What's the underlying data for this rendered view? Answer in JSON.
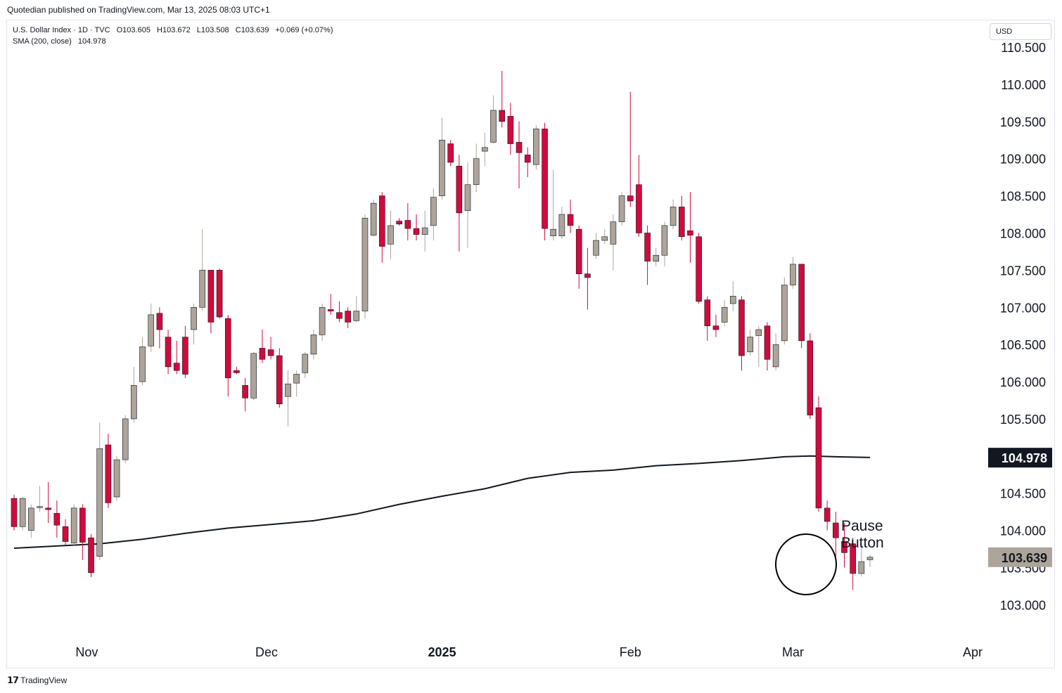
{
  "header": {
    "published": "Quotedian published on TradingView.com, Mar 13, 2025 08:03 UTC+1"
  },
  "legend": {
    "symbol": "U.S. Dollar Index · 1D · TVC",
    "open": "O103.605",
    "high": "H103.672",
    "low": "L103.508",
    "close": "C103.639",
    "change": "+0.069 (+0.07%)",
    "sma_label": "SMA (200, close)",
    "sma_value": "104.978"
  },
  "currency_button": "USD",
  "annotation": {
    "line1": "Pause",
    "line2": "Button"
  },
  "footer": {
    "brand": "TradingView"
  },
  "colors": {
    "up": "#ada49a",
    "down": "#d20a3c",
    "sma": "#131722",
    "last_price_bg": "#ada49a",
    "sma_label_bg": "#131722"
  },
  "chart_data": {
    "type": "candlestick",
    "title": "U.S. Dollar Index · 1D · TVC",
    "ylim": [
      102.55,
      110.85
    ],
    "y_ticks": [
      "110.500",
      "110.000",
      "109.500",
      "109.000",
      "108.500",
      "108.000",
      "107.500",
      "107.000",
      "106.500",
      "106.000",
      "105.500",
      "104.500",
      "104.000",
      "103.500",
      "103.000"
    ],
    "x_ticks": [
      {
        "label": "Nov",
        "index": 8.5
      },
      {
        "label": "Dec",
        "index": 29.5
      },
      {
        "label": "2025",
        "index": 50
      },
      {
        "label": "Feb",
        "index": 72
      },
      {
        "label": "Mar",
        "index": 91
      },
      {
        "label": "Apr",
        "index": 112
      }
    ],
    "price_labels": {
      "sma": "104.978",
      "last": "103.639"
    },
    "candles": [
      {
        "o": 104.43,
        "h": 104.48,
        "l": 104.0,
        "c": 104.05
      },
      {
        "o": 104.05,
        "h": 104.45,
        "l": 104.0,
        "c": 104.43
      },
      {
        "o": 104.0,
        "h": 104.35,
        "l": 103.9,
        "c": 104.3
      },
      {
        "o": 104.31,
        "h": 104.6,
        "l": 104.25,
        "c": 104.32
      },
      {
        "o": 104.3,
        "h": 104.65,
        "l": 104.1,
        "c": 104.28
      },
      {
        "o": 104.23,
        "h": 104.4,
        "l": 103.9,
        "c": 104.07
      },
      {
        "o": 104.05,
        "h": 104.15,
        "l": 103.8,
        "c": 103.85
      },
      {
        "o": 103.83,
        "h": 104.35,
        "l": 103.8,
        "c": 104.3
      },
      {
        "o": 104.3,
        "h": 104.35,
        "l": 103.6,
        "c": 103.84
      },
      {
        "o": 103.9,
        "h": 103.95,
        "l": 103.37,
        "c": 103.43
      },
      {
        "o": 103.65,
        "h": 105.45,
        "l": 103.6,
        "c": 105.1
      },
      {
        "o": 105.15,
        "h": 105.3,
        "l": 104.3,
        "c": 104.37
      },
      {
        "o": 104.45,
        "h": 105.0,
        "l": 104.4,
        "c": 104.95
      },
      {
        "o": 104.95,
        "h": 105.55,
        "l": 104.9,
        "c": 105.5
      },
      {
        "o": 105.5,
        "h": 106.2,
        "l": 105.45,
        "c": 105.95
      },
      {
        "o": 106.0,
        "h": 106.6,
        "l": 105.95,
        "c": 106.47
      },
      {
        "o": 106.48,
        "h": 107.05,
        "l": 106.4,
        "c": 106.9
      },
      {
        "o": 106.92,
        "h": 107.0,
        "l": 106.45,
        "c": 106.7
      },
      {
        "o": 106.6,
        "h": 106.7,
        "l": 106.1,
        "c": 106.2
      },
      {
        "o": 106.25,
        "h": 106.55,
        "l": 106.1,
        "c": 106.15
      },
      {
        "o": 106.6,
        "h": 106.75,
        "l": 106.05,
        "c": 106.1
      },
      {
        "o": 106.7,
        "h": 107.05,
        "l": 106.5,
        "c": 107.0
      },
      {
        "o": 107.0,
        "h": 108.05,
        "l": 106.95,
        "c": 107.5
      },
      {
        "o": 107.5,
        "h": 107.5,
        "l": 106.65,
        "c": 106.8
      },
      {
        "o": 107.5,
        "h": 107.52,
        "l": 106.85,
        "c": 106.87
      },
      {
        "o": 106.85,
        "h": 106.9,
        "l": 105.8,
        "c": 106.05
      },
      {
        "o": 106.15,
        "h": 106.2,
        "l": 106.1,
        "c": 106.12
      },
      {
        "o": 105.95,
        "h": 106.05,
        "l": 105.6,
        "c": 105.78
      },
      {
        "o": 105.78,
        "h": 106.4,
        "l": 105.75,
        "c": 106.38
      },
      {
        "o": 106.45,
        "h": 106.7,
        "l": 106.25,
        "c": 106.3
      },
      {
        "o": 106.43,
        "h": 106.6,
        "l": 106.3,
        "c": 106.35
      },
      {
        "o": 106.35,
        "h": 106.45,
        "l": 105.65,
        "c": 105.7
      },
      {
        "o": 105.8,
        "h": 106.15,
        "l": 105.4,
        "c": 105.97
      },
      {
        "o": 105.98,
        "h": 106.15,
        "l": 105.8,
        "c": 106.1
      },
      {
        "o": 106.12,
        "h": 106.4,
        "l": 106.05,
        "c": 106.37
      },
      {
        "o": 106.37,
        "h": 106.7,
        "l": 106.3,
        "c": 106.63
      },
      {
        "o": 106.63,
        "h": 107.05,
        "l": 106.55,
        "c": 107.0
      },
      {
        "o": 106.97,
        "h": 107.18,
        "l": 106.9,
        "c": 106.95
      },
      {
        "o": 106.93,
        "h": 107.08,
        "l": 106.8,
        "c": 106.85
      },
      {
        "o": 106.95,
        "h": 107.0,
        "l": 106.72,
        "c": 106.8
      },
      {
        "o": 106.82,
        "h": 107.15,
        "l": 106.8,
        "c": 106.95
      },
      {
        "o": 106.95,
        "h": 108.25,
        "l": 106.85,
        "c": 108.2
      },
      {
        "o": 107.97,
        "h": 108.45,
        "l": 107.95,
        "c": 108.4
      },
      {
        "o": 108.5,
        "h": 108.55,
        "l": 107.6,
        "c": 107.82
      },
      {
        "o": 107.85,
        "h": 108.3,
        "l": 107.65,
        "c": 108.1
      },
      {
        "o": 108.16,
        "h": 108.2,
        "l": 108.1,
        "c": 108.12
      },
      {
        "o": 108.17,
        "h": 108.4,
        "l": 107.9,
        "c": 108.06
      },
      {
        "o": 108.06,
        "h": 108.25,
        "l": 107.9,
        "c": 107.98
      },
      {
        "o": 107.98,
        "h": 108.3,
        "l": 107.75,
        "c": 108.07
      },
      {
        "o": 108.1,
        "h": 108.6,
        "l": 107.9,
        "c": 108.48
      },
      {
        "o": 108.5,
        "h": 109.55,
        "l": 108.45,
        "c": 109.25
      },
      {
        "o": 109.2,
        "h": 109.25,
        "l": 108.9,
        "c": 108.95
      },
      {
        "o": 108.9,
        "h": 109.05,
        "l": 107.75,
        "c": 108.27
      },
      {
        "o": 108.3,
        "h": 108.95,
        "l": 107.8,
        "c": 108.65
      },
      {
        "o": 108.65,
        "h": 109.2,
        "l": 108.55,
        "c": 109.0
      },
      {
        "o": 109.1,
        "h": 109.35,
        "l": 108.9,
        "c": 109.15
      },
      {
        "o": 109.22,
        "h": 109.85,
        "l": 109.2,
        "c": 109.65
      },
      {
        "o": 109.65,
        "h": 110.18,
        "l": 109.42,
        "c": 109.5
      },
      {
        "o": 109.57,
        "h": 109.75,
        "l": 109.05,
        "c": 109.2
      },
      {
        "o": 109.22,
        "h": 109.5,
        "l": 108.6,
        "c": 109.08
      },
      {
        "o": 109.05,
        "h": 109.15,
        "l": 108.75,
        "c": 108.95
      },
      {
        "o": 108.92,
        "h": 109.45,
        "l": 108.85,
        "c": 109.4
      },
      {
        "o": 109.4,
        "h": 109.48,
        "l": 107.9,
        "c": 108.06
      },
      {
        "o": 107.96,
        "h": 108.85,
        "l": 107.9,
        "c": 108.05
      },
      {
        "o": 107.96,
        "h": 108.35,
        "l": 107.92,
        "c": 108.25
      },
      {
        "o": 108.25,
        "h": 108.45,
        "l": 108.0,
        "c": 108.1
      },
      {
        "o": 108.05,
        "h": 108.1,
        "l": 107.25,
        "c": 107.45
      },
      {
        "o": 107.45,
        "h": 107.8,
        "l": 106.97,
        "c": 107.4
      },
      {
        "o": 107.7,
        "h": 108.0,
        "l": 107.65,
        "c": 107.9
      },
      {
        "o": 107.9,
        "h": 108.05,
        "l": 107.85,
        "c": 107.95
      },
      {
        "o": 107.85,
        "h": 108.25,
        "l": 107.5,
        "c": 108.15
      },
      {
        "o": 108.15,
        "h": 108.55,
        "l": 108.1,
        "c": 108.5
      },
      {
        "o": 108.5,
        "h": 109.9,
        "l": 108.35,
        "c": 108.43
      },
      {
        "o": 108.65,
        "h": 109.05,
        "l": 107.95,
        "c": 108.0
      },
      {
        "o": 108.0,
        "h": 108.1,
        "l": 107.3,
        "c": 107.62
      },
      {
        "o": 107.62,
        "h": 107.8,
        "l": 107.55,
        "c": 107.7
      },
      {
        "o": 107.7,
        "h": 108.15,
        "l": 107.55,
        "c": 108.1
      },
      {
        "o": 108.1,
        "h": 108.45,
        "l": 108.05,
        "c": 108.35
      },
      {
        "o": 108.35,
        "h": 108.5,
        "l": 107.9,
        "c": 107.95
      },
      {
        "o": 108.03,
        "h": 108.55,
        "l": 107.6,
        "c": 107.97
      },
      {
        "o": 107.95,
        "h": 108.0,
        "l": 107.05,
        "c": 107.08
      },
      {
        "o": 107.1,
        "h": 107.15,
        "l": 106.55,
        "c": 106.75
      },
      {
        "o": 106.75,
        "h": 106.9,
        "l": 106.6,
        "c": 106.7
      },
      {
        "o": 106.8,
        "h": 107.1,
        "l": 106.75,
        "c": 107.0
      },
      {
        "o": 107.05,
        "h": 107.35,
        "l": 106.95,
        "c": 107.15
      },
      {
        "o": 107.1,
        "h": 107.15,
        "l": 106.15,
        "c": 106.35
      },
      {
        "o": 106.4,
        "h": 106.7,
        "l": 106.35,
        "c": 106.6
      },
      {
        "o": 106.62,
        "h": 106.75,
        "l": 106.2,
        "c": 106.7
      },
      {
        "o": 106.75,
        "h": 106.8,
        "l": 106.15,
        "c": 106.3
      },
      {
        "o": 106.2,
        "h": 106.65,
        "l": 106.15,
        "c": 106.5
      },
      {
        "o": 106.55,
        "h": 107.4,
        "l": 106.5,
        "c": 107.3
      },
      {
        "o": 107.3,
        "h": 107.68,
        "l": 107.25,
        "c": 107.58
      },
      {
        "o": 107.58,
        "h": 107.58,
        "l": 106.45,
        "c": 106.55
      },
      {
        "o": 106.55,
        "h": 106.65,
        "l": 105.5,
        "c": 105.55
      },
      {
        "o": 105.65,
        "h": 105.8,
        "l": 104.25,
        "c": 104.3
      },
      {
        "o": 104.3,
        "h": 104.4,
        "l": 104.0,
        "c": 104.12
      },
      {
        "o": 104.1,
        "h": 104.25,
        "l": 103.6,
        "c": 103.9
      },
      {
        "o": 103.85,
        "h": 104.1,
        "l": 103.5,
        "c": 103.7
      },
      {
        "o": 103.82,
        "h": 103.9,
        "l": 103.2,
        "c": 103.42
      },
      {
        "o": 103.42,
        "h": 103.8,
        "l": 103.38,
        "c": 103.58
      },
      {
        "o": 103.605,
        "h": 103.672,
        "l": 103.508,
        "c": 103.639
      }
    ],
    "sma200": [
      {
        "i": 0,
        "v": 103.76
      },
      {
        "i": 10,
        "v": 103.82
      },
      {
        "i": 15,
        "v": 103.88
      },
      {
        "i": 20,
        "v": 103.96
      },
      {
        "i": 25,
        "v": 104.03
      },
      {
        "i": 30,
        "v": 104.08
      },
      {
        "i": 35,
        "v": 104.13
      },
      {
        "i": 40,
        "v": 104.22
      },
      {
        "i": 45,
        "v": 104.35
      },
      {
        "i": 50,
        "v": 104.46
      },
      {
        "i": 55,
        "v": 104.56
      },
      {
        "i": 60,
        "v": 104.7
      },
      {
        "i": 65,
        "v": 104.78
      },
      {
        "i": 70,
        "v": 104.81
      },
      {
        "i": 75,
        "v": 104.87
      },
      {
        "i": 80,
        "v": 104.9
      },
      {
        "i": 85,
        "v": 104.94
      },
      {
        "i": 90,
        "v": 104.99
      },
      {
        "i": 93,
        "v": 105.0
      },
      {
        "i": 96,
        "v": 104.99
      },
      {
        "i": 100,
        "v": 104.98
      }
    ]
  }
}
